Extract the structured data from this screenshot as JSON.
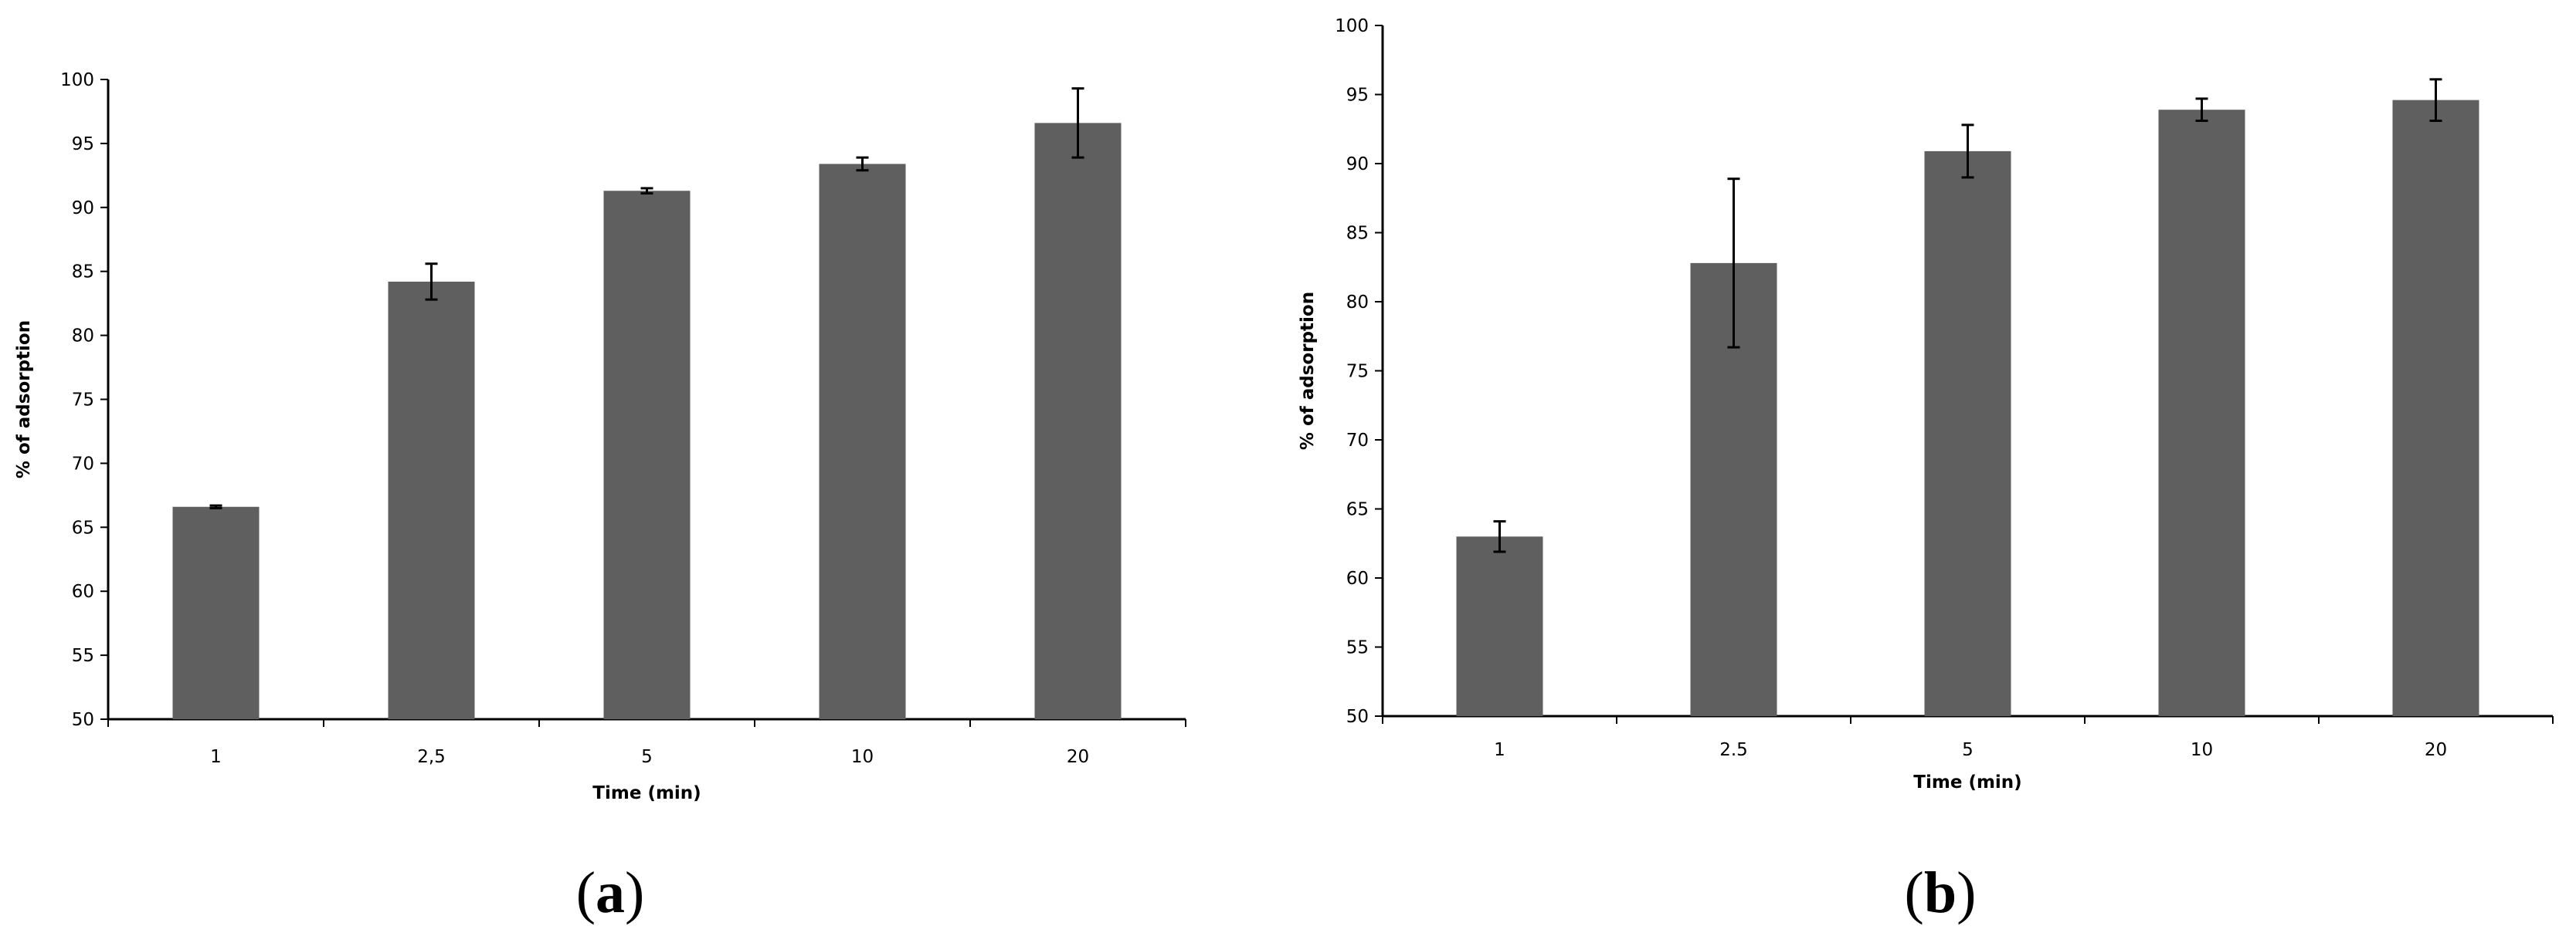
{
  "figure": {
    "panel_a": {
      "open": "(",
      "letter": "a",
      "close": ")"
    },
    "panel_b": {
      "open": "(",
      "letter": "b",
      "close": ")"
    }
  },
  "colors": {
    "bar": "#5f5f5f",
    "axis": "#000000",
    "text": "#000000"
  },
  "chart_data": [
    {
      "id": "a",
      "type": "bar",
      "title": "",
      "xlabel": "Time (min)",
      "ylabel": "% of adsorption",
      "categories": [
        "1",
        "2,5",
        "5",
        "10",
        "20"
      ],
      "values": [
        66.6,
        84.2,
        91.3,
        93.4,
        96.6
      ],
      "errors": [
        0.1,
        1.4,
        0.2,
        0.5,
        2.7
      ],
      "ylim": [
        50,
        100
      ],
      "yticks": [
        "50",
        "55",
        "60",
        "65",
        "70",
        "75",
        "80",
        "85",
        "90",
        "95",
        "100"
      ],
      "grid": false,
      "legend": "none"
    },
    {
      "id": "b",
      "type": "bar",
      "title": "",
      "xlabel": "Time (min)",
      "ylabel": "% of adsorption",
      "categories": [
        "1",
        "2.5",
        "5",
        "10",
        "20"
      ],
      "values": [
        63.0,
        82.8,
        90.9,
        93.9,
        94.6
      ],
      "errors": [
        1.1,
        6.1,
        1.9,
        0.8,
        1.5
      ],
      "ylim": [
        50,
        100
      ],
      "yticks": [
        "50",
        "55",
        "60",
        "65",
        "70",
        "75",
        "80",
        "85",
        "90",
        "95",
        "100"
      ],
      "grid": false,
      "legend": "none"
    }
  ]
}
